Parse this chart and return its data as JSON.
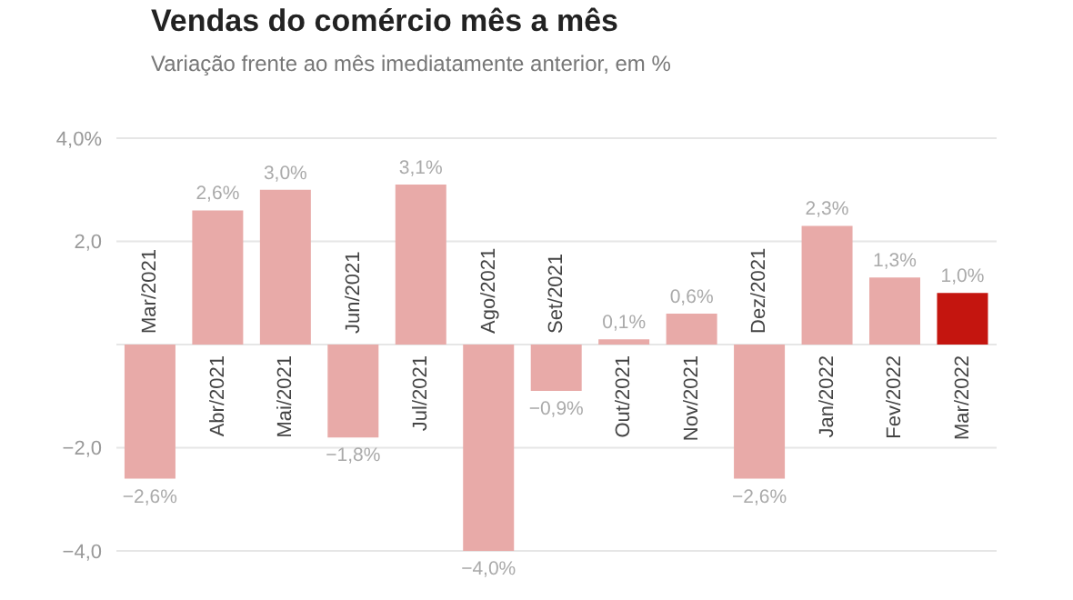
{
  "chart_data": {
    "type": "bar",
    "title": "Vendas do comércio mês a mês",
    "subtitle": "Variação frente ao mês imediatamente anterior, em %",
    "categories": [
      "Mar/2021",
      "Abr/2021",
      "Mai/2021",
      "Jun/2021",
      "Jul/2021",
      "Ago/2021",
      "Set/2021",
      "Out/2021",
      "Nov/2021",
      "Dez/2021",
      "Jan/2022",
      "Fev/2022",
      "Mar/2022"
    ],
    "values": [
      -2.6,
      2.6,
      3.0,
      -1.8,
      3.1,
      -4.0,
      -0.9,
      0.1,
      0.6,
      -2.6,
      2.3,
      1.3,
      1.0
    ],
    "value_labels": [
      "−2,6%",
      "2,6%",
      "3,0%",
      "−1,8%",
      "3,1%",
      "−4,0%",
      "−0,9%",
      "0,1%",
      "0,6%",
      "−2,6%",
      "2,3%",
      "1,3%",
      "1,0%"
    ],
    "colors": [
      "#e8aaa8",
      "#e8aaa8",
      "#e8aaa8",
      "#e8aaa8",
      "#e8aaa8",
      "#e8aaa8",
      "#e8aaa8",
      "#e8aaa8",
      "#e8aaa8",
      "#e8aaa8",
      "#e8aaa8",
      "#e8aaa8",
      "#c4150f"
    ],
    "ylim": [
      -4.0,
      4.0
    ],
    "yticks": [
      {
        "value": 4,
        "label": "4,0%"
      },
      {
        "value": 2,
        "label": "2,0"
      },
      {
        "value": 0,
        "label": null
      },
      {
        "value": -2,
        "label": "−2,0"
      },
      {
        "value": -4,
        "label": "−4,0"
      }
    ],
    "grid": "y"
  }
}
